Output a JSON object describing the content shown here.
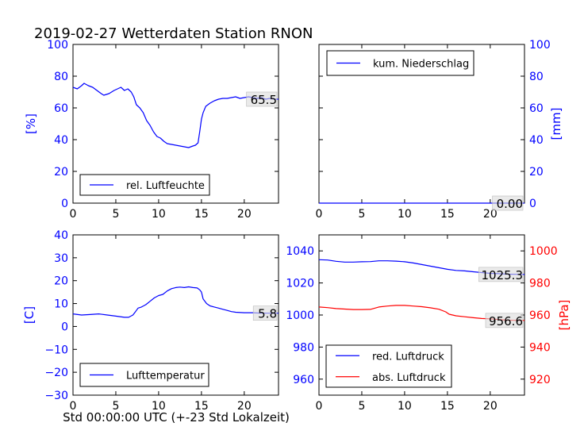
{
  "title": "2019-02-27 Wetterdaten Station RNON",
  "xlabel": "Std 00:00:00 UTC (+-23 Std Lokalzeit)",
  "colors": {
    "blue": "#0000ff",
    "red": "#ff0000",
    "axis": "#000000"
  },
  "chart_data": [
    {
      "id": "humidity",
      "type": "line",
      "title": "",
      "ylabel": "[%]",
      "ylabel_color": "#0000ff",
      "xlim": [
        0,
        24
      ],
      "ylim": [
        0,
        100
      ],
      "xticks": [
        0,
        5,
        10,
        15,
        20
      ],
      "yticks": [
        0,
        20,
        40,
        60,
        80,
        100
      ],
      "legend": {
        "placement": "lower-left",
        "entries": [
          {
            "label": "rel. Luftfeuchte",
            "color": "#0000ff"
          }
        ]
      },
      "last_value_label": "65.5",
      "series": [
        {
          "name": "rel. Luftfeuchte",
          "color": "#0000ff",
          "x": [
            0,
            0.5,
            1,
            1.3,
            1.8,
            2.3,
            2.8,
            3.3,
            3.6,
            4.2,
            4.8,
            5.2,
            5.6,
            6.0,
            6.4,
            6.8,
            7.1,
            7.4,
            7.8,
            8.2,
            8.6,
            9.0,
            9.4,
            9.8,
            10.2,
            10.6,
            11.0,
            11.5,
            12.0,
            12.5,
            13.0,
            13.5,
            14.0,
            14.3,
            14.6,
            14.8,
            15.0,
            15.2,
            15.5,
            16.0,
            16.5,
            17.0,
            17.5,
            18.0,
            18.5,
            19.0,
            19.5,
            20.0,
            20.5,
            21.0,
            21.5,
            22.0,
            22.5,
            23.0,
            23.5,
            24.0
          ],
          "y": [
            73,
            72,
            74,
            75.5,
            74,
            73,
            71,
            69,
            68,
            69,
            71,
            72,
            73,
            71,
            72,
            70,
            67,
            62,
            60,
            57,
            52,
            49,
            45,
            42,
            41,
            39,
            37.5,
            37,
            36.5,
            36,
            35.5,
            35,
            36,
            36.5,
            38,
            45,
            53,
            57,
            61,
            63,
            64.5,
            65.5,
            66,
            66,
            66.5,
            67,
            66,
            66.5,
            67,
            66.5,
            66,
            66.5,
            65.5,
            66,
            65.5,
            65.5
          ]
        }
      ]
    },
    {
      "id": "precipitation",
      "type": "line",
      "title": "",
      "ylabel": "[mm]",
      "ylabel_color": "#0000ff",
      "xlim": [
        0,
        24
      ],
      "ylim": [
        0,
        100
      ],
      "xticks": [
        0,
        5,
        10,
        15,
        20
      ],
      "yticks": [
        0,
        20,
        40,
        60,
        80,
        100
      ],
      "y_axis_side": "right",
      "legend": {
        "placement": "top-left",
        "entries": [
          {
            "label": "kum. Niederschlag",
            "color": "#0000ff"
          }
        ]
      },
      "last_value_label": "0.00",
      "series": [
        {
          "name": "kum. Niederschlag",
          "color": "#0000ff",
          "x": [
            0,
            24
          ],
          "y": [
            0,
            0
          ]
        }
      ]
    },
    {
      "id": "temperature",
      "type": "line",
      "title": "",
      "ylabel": "[C]",
      "ylabel_color": "#0000ff",
      "xlim": [
        0,
        24
      ],
      "ylim": [
        -30,
        40
      ],
      "xticks": [
        0,
        5,
        10,
        15,
        20
      ],
      "yticks": [
        -30,
        -20,
        -10,
        0,
        10,
        20,
        30,
        40
      ],
      "legend": {
        "placement": "lower-left",
        "entries": [
          {
            "label": "Lufttemperatur",
            "color": "#0000ff"
          }
        ]
      },
      "last_value_label": "5.8",
      "series": [
        {
          "name": "Lufttemperatur",
          "color": "#0000ff",
          "x": [
            0,
            1,
            2,
            3,
            4,
            5,
            6,
            6.5,
            7,
            7.3,
            7.6,
            8,
            8.5,
            9,
            9.5,
            10,
            10.5,
            11,
            11.5,
            12,
            12.5,
            13,
            13.5,
            14,
            14.5,
            14.8,
            15.0,
            15.2,
            15.6,
            16,
            16.5,
            17,
            17.5,
            18,
            18.5,
            19,
            20,
            21,
            22,
            23,
            24
          ],
          "y": [
            5.5,
            5,
            5.2,
            5.5,
            5,
            4.5,
            4,
            4,
            5,
            6.5,
            8,
            8.5,
            9.5,
            11,
            12.5,
            13.5,
            14,
            15.5,
            16.5,
            17,
            17.2,
            17,
            17.3,
            17,
            16.8,
            16,
            15,
            12,
            10,
            9,
            8.5,
            8,
            7.5,
            7,
            6.5,
            6.2,
            6,
            6,
            5.8,
            5.8,
            5.8
          ]
        }
      ]
    },
    {
      "id": "pressure",
      "type": "line",
      "title": "",
      "xlim": [
        0,
        24
      ],
      "ylim": [
        950,
        1050
      ],
      "y2lim": [
        910,
        1010
      ],
      "xticks": [
        0,
        5,
        10,
        15,
        20
      ],
      "yticks": [
        960,
        980,
        1000,
        1020,
        1040
      ],
      "y2ticks": [
        920,
        940,
        960,
        980,
        1000
      ],
      "ylabel": "",
      "y2label": "[hPa]",
      "y2label_color": "#ff0000",
      "legend": {
        "placement": "lower-left",
        "entries": [
          {
            "label": "red. Luftdruck",
            "color": "#0000ff"
          },
          {
            "label": "abs. Luftdruck",
            "color": "#ff0000"
          }
        ]
      },
      "last_value_label": "1025.3",
      "last_value_label2": "956.6",
      "series": [
        {
          "name": "red. Luftdruck",
          "color": "#0000ff",
          "axis": "left",
          "x": [
            0,
            1,
            2,
            3,
            4,
            5,
            6,
            7,
            8,
            9,
            10,
            11,
            12,
            13,
            14,
            15,
            16,
            17,
            18,
            19,
            20,
            21,
            22,
            23,
            24
          ],
          "y": [
            1034.5,
            1034.3,
            1033.5,
            1033,
            1033,
            1033.2,
            1033.3,
            1033.8,
            1033.8,
            1033.6,
            1033.2,
            1032.5,
            1031.5,
            1030.5,
            1029.5,
            1028.5,
            1027.8,
            1027.5,
            1027,
            1026.5,
            1026,
            1025.8,
            1025.5,
            1025.4,
            1025.3
          ]
        },
        {
          "name": "abs. Luftdruck",
          "color": "#ff0000",
          "axis": "right",
          "x": [
            0,
            1,
            2,
            3,
            4,
            5,
            6,
            7,
            8,
            9,
            10,
            11,
            12,
            13,
            14,
            14.8,
            15.2,
            16,
            17,
            18,
            19,
            20,
            21,
            22,
            23,
            24
          ],
          "y": [
            965,
            964.6,
            964,
            963.7,
            963.4,
            963.4,
            963.5,
            965,
            965.6,
            966,
            966,
            965.6,
            965.2,
            964.5,
            963.6,
            962,
            960.5,
            959.5,
            958.9,
            958.3,
            957.8,
            957.6,
            957.2,
            956.8,
            956.7,
            956.6
          ]
        }
      ]
    }
  ]
}
